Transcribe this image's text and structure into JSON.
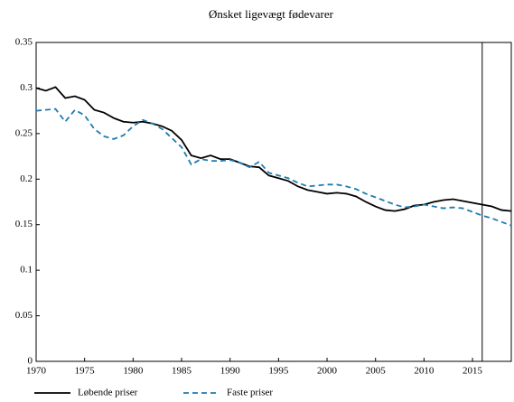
{
  "chart_data": {
    "type": "line",
    "title": "Ønsket ligevægt fødevarer",
    "x": [
      1970,
      1971,
      1972,
      1973,
      1974,
      1975,
      1976,
      1977,
      1978,
      1979,
      1980,
      1981,
      1982,
      1983,
      1984,
      1985,
      1986,
      1987,
      1988,
      1989,
      1990,
      1991,
      1992,
      1993,
      1994,
      1995,
      1996,
      1997,
      1998,
      1999,
      2000,
      2001,
      2002,
      2003,
      2004,
      2005,
      2006,
      2007,
      2008,
      2009,
      2010,
      2011,
      2012,
      2013,
      2014,
      2015,
      2016,
      2017,
      2018,
      2019
    ],
    "series": [
      {
        "name": "Løbende priser",
        "color": "#000000",
        "dash": false,
        "values": [
          0.3,
          0.297,
          0.301,
          0.289,
          0.291,
          0.287,
          0.276,
          0.273,
          0.267,
          0.263,
          0.262,
          0.263,
          0.261,
          0.258,
          0.253,
          0.243,
          0.226,
          0.223,
          0.226,
          0.222,
          0.222,
          0.218,
          0.214,
          0.213,
          0.204,
          0.201,
          0.198,
          0.192,
          0.188,
          0.186,
          0.184,
          0.185,
          0.184,
          0.181,
          0.175,
          0.17,
          0.166,
          0.165,
          0.167,
          0.171,
          0.172,
          0.175,
          0.177,
          0.178,
          0.176,
          0.174,
          0.172,
          0.17,
          0.166,
          0.165
        ]
      },
      {
        "name": "Faste priser",
        "color": "#1f7bb0",
        "dash": true,
        "values": [
          0.275,
          0.276,
          0.277,
          0.263,
          0.276,
          0.27,
          0.255,
          0.247,
          0.244,
          0.248,
          0.258,
          0.265,
          0.261,
          0.255,
          0.245,
          0.235,
          0.216,
          0.222,
          0.22,
          0.22,
          0.221,
          0.218,
          0.213,
          0.219,
          0.207,
          0.204,
          0.201,
          0.196,
          0.192,
          0.193,
          0.194,
          0.194,
          0.192,
          0.189,
          0.184,
          0.18,
          0.176,
          0.172,
          0.169,
          0.17,
          0.172,
          0.17,
          0.168,
          0.169,
          0.168,
          0.164,
          0.16,
          0.157,
          0.153,
          0.149
        ]
      }
    ],
    "xlim": [
      1970,
      2019
    ],
    "xticks": [
      1970,
      1975,
      1980,
      1985,
      1990,
      1995,
      2000,
      2005,
      2010,
      2015
    ],
    "ylim": [
      0,
      0.35
    ],
    "yticks": [
      0,
      0.05,
      0.1,
      0.15,
      0.2,
      0.25,
      0.3,
      0.35
    ],
    "vline": 2016,
    "grid": false,
    "legend": "bottom"
  }
}
